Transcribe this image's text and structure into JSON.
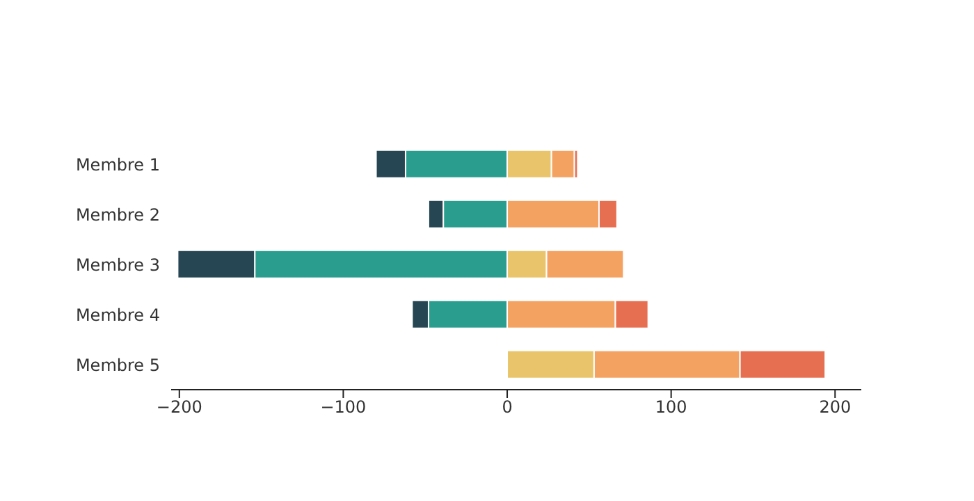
{
  "chart_data": {
    "type": "bar",
    "orientation": "horizontal",
    "stacked": true,
    "categories": [
      "Membre 1",
      "Membre 2",
      "Membre 3",
      "Membre 4",
      "Membre 5"
    ],
    "series": [
      {
        "color": "#2a9d8f",
        "values": [
          -62,
          -39,
          -154,
          -48,
          0
        ]
      },
      {
        "color": "#264653",
        "values": [
          -18,
          -9,
          -47,
          -10,
          0
        ]
      },
      {
        "color": "#e9c46a",
        "values": [
          27,
          0,
          24,
          0,
          53
        ]
      },
      {
        "color": "#f4a261",
        "values": [
          14,
          56,
          47,
          66,
          89
        ]
      },
      {
        "color": "#e76f51",
        "values": [
          2,
          11,
          0,
          20,
          52
        ]
      }
    ],
    "xlim": [
      -205,
      216
    ],
    "xticks": [
      {
        "value": -200,
        "label": "−200"
      },
      {
        "value": -100,
        "label": "−100"
      },
      0,
      100,
      200
    ],
    "grid": false,
    "legend": false
  }
}
